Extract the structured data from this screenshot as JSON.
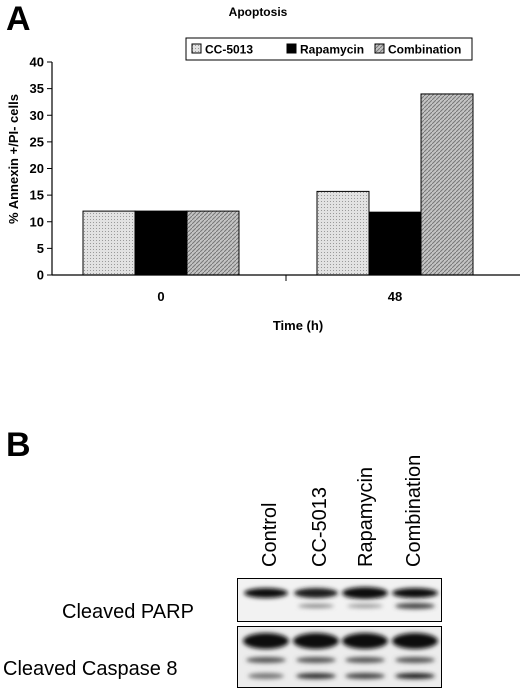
{
  "panels": {
    "a": "A",
    "b": "B"
  },
  "chart_data": {
    "type": "bar",
    "title": "Apoptosis",
    "xlabel": "Time (h)",
    "ylabel": "% Annexin +/PI- cells",
    "categories": [
      "0",
      "48"
    ],
    "ylim": [
      0,
      40
    ],
    "yticks": [
      "0",
      "5",
      "10",
      "15",
      "20",
      "25",
      "30",
      "35",
      "40"
    ],
    "legend_position": "top-right",
    "series": [
      {
        "name": "CC-5013",
        "values": [
          12,
          15.7
        ],
        "fill": "#d9d9d9",
        "pattern": "dots"
      },
      {
        "name": "Rapamycin",
        "values": [
          12,
          11.8
        ],
        "fill": "#000000",
        "pattern": "none"
      },
      {
        "name": "Combination",
        "values": [
          12,
          34
        ],
        "fill": "#aaaaaa",
        "pattern": "hatch"
      }
    ]
  },
  "blot": {
    "lanes": [
      "Control",
      "CC-5013",
      "Rapamycin",
      "Combination"
    ],
    "rows": [
      "Cleaved PARP",
      "Cleaved Caspase 8"
    ]
  }
}
